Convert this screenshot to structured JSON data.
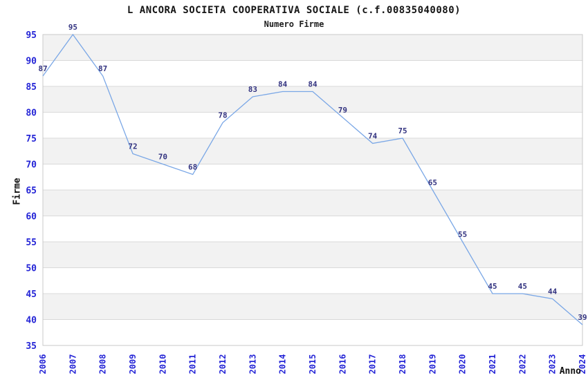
{
  "chart_data": {
    "type": "line",
    "title": "L ANCORA SOCIETA COOPERATIVA SOCIALE (c.f.00835040080)",
    "subtitle": "Numero Firme",
    "xlabel": "Anno",
    "ylabel": "Firme",
    "x": [
      "2006",
      "2007",
      "2008",
      "2009",
      "2010",
      "2011",
      "2012",
      "2013",
      "2014",
      "2015",
      "2016",
      "2017",
      "2018",
      "2019",
      "2020",
      "2021",
      "2022",
      "2023",
      "2024"
    ],
    "values": [
      87,
      95,
      87,
      72,
      70,
      68,
      78,
      83,
      84,
      84,
      79,
      74,
      75,
      65,
      55,
      45,
      45,
      44,
      39
    ],
    "ylim": [
      35,
      95
    ],
    "ytick_step": 5,
    "grid": true,
    "legend": "none",
    "band_rule": "gray band between multiples of 10 and +5 (e.g. 40-45, 50-55 ... 90-95)",
    "colors": {
      "line": "#7aa7e6",
      "point_label": "#333380",
      "tick_label": "#2424d6",
      "band": "#f2f2f2",
      "grid": "#d9d9d9",
      "border": "#c9c9c9",
      "title": "#141414"
    }
  }
}
